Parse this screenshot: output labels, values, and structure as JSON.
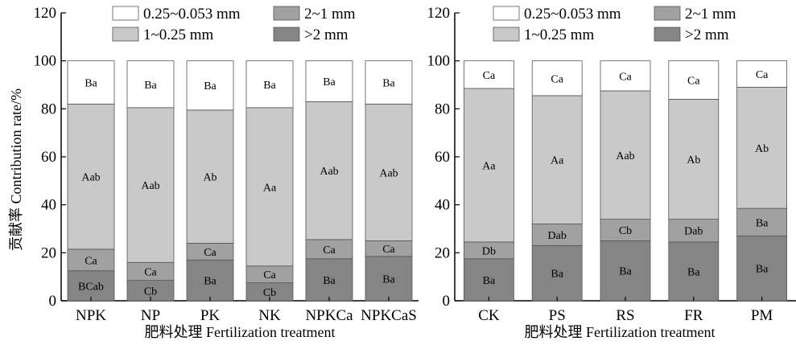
{
  "legend": {
    "items": [
      {
        "key": "s4",
        "label": "0.25~0.053 mm",
        "color": "#ffffff"
      },
      {
        "key": "s2",
        "label": "2~1 mm",
        "color": "#a1a1a1"
      },
      {
        "key": "s3",
        "label": "1~0.25 mm",
        "color": "#c9c9c9"
      },
      {
        "key": "s1",
        "label": ">2 mm",
        "color": "#858585"
      }
    ]
  },
  "chart_data": [
    {
      "type": "bar",
      "stacked": true,
      "ylabel": "贡献率 Contribution rate/%",
      "xlabel": "肥料处理 Fertilization treatment",
      "ylim": [
        0,
        120
      ],
      "yticks": [
        0,
        20,
        40,
        60,
        80,
        100,
        120
      ],
      "categories": [
        "NPK",
        "NP",
        "PK",
        "NK",
        "NPKCa",
        "NPKCaS"
      ],
      "series": [
        {
          "name": ">2 mm",
          "values": [
            12.5,
            8.5,
            17,
            7.5,
            17.5,
            18.5
          ],
          "labels": [
            "BCab",
            "Cb",
            "Ba",
            "Cb",
            "Ba",
            "Ba"
          ]
        },
        {
          "name": "2~1 mm",
          "values": [
            9,
            7.5,
            7,
            7,
            8,
            6.5
          ],
          "labels": [
            "Ca",
            "Ca",
            "Ca",
            "Ca",
            "Ca",
            "Ca"
          ]
        },
        {
          "name": "1~0.25 mm",
          "values": [
            60.5,
            64.5,
            55.5,
            66,
            57.5,
            57
          ],
          "labels": [
            "Aab",
            "Aab",
            "Ab",
            "Aa",
            "Aab",
            "Aab"
          ]
        },
        {
          "name": "0.25~0.053 mm",
          "values": [
            18,
            19.5,
            20.5,
            19.5,
            17,
            18
          ],
          "labels": [
            "Ba",
            "Ba",
            "Ba",
            "Ba",
            "Ba",
            "Ba"
          ]
        }
      ]
    },
    {
      "type": "bar",
      "stacked": true,
      "ylabel": "",
      "xlabel": "肥料处理 Fertilization treatment",
      "ylim": [
        0,
        120
      ],
      "yticks": [
        0,
        20,
        40,
        60,
        80,
        100,
        120
      ],
      "categories": [
        "CK",
        "PS",
        "RS",
        "FR",
        "PM"
      ],
      "series": [
        {
          "name": ">2 mm",
          "values": [
            17.5,
            23,
            25,
            24.5,
            27
          ],
          "labels": [
            "Ba",
            "Ba",
            "Ba",
            "Ba",
            "Ba"
          ]
        },
        {
          "name": "2~1 mm",
          "values": [
            7,
            9,
            9,
            9.5,
            11.5
          ],
          "labels": [
            "Db",
            "Dab",
            "Cb",
            "Dab",
            "Ba"
          ]
        },
        {
          "name": "1~0.25 mm",
          "values": [
            64,
            53.5,
            53.5,
            50,
            50.5
          ],
          "labels": [
            "Aa",
            "Aa",
            "Aab",
            "Ab",
            "Ab"
          ]
        },
        {
          "name": "0.25~0.053 mm",
          "values": [
            11.5,
            14.5,
            12.5,
            16,
            11
          ],
          "labels": [
            "Ca",
            "Ca",
            "Ca",
            "Ca",
            "Ca"
          ]
        }
      ]
    }
  ]
}
